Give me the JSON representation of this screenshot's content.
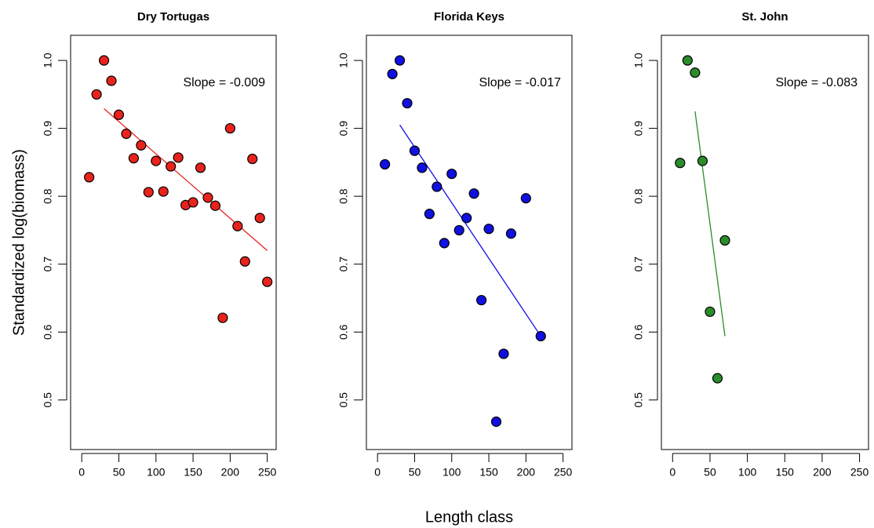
{
  "chart_data": [
    {
      "type": "scatter",
      "title": "Dry Tortugas",
      "ylabel": "Standardized log(biomass)",
      "x": [
        10,
        20,
        30,
        40,
        50,
        60,
        70,
        80,
        90,
        100,
        110,
        120,
        130,
        140,
        150,
        160,
        170,
        180,
        190,
        200,
        210,
        220,
        230,
        240,
        250
      ],
      "values": [
        0.828,
        0.95,
        1.0,
        0.97,
        0.92,
        0.892,
        0.856,
        0.875,
        0.806,
        0.852,
        0.807,
        0.844,
        0.857,
        0.787,
        0.791,
        0.842,
        0.798,
        0.786,
        0.621,
        0.9,
        0.756,
        0.704,
        0.855,
        0.768,
        0.674
      ],
      "color": "#e8231c",
      "fit": {
        "x": [
          30,
          250
        ],
        "y": [
          0.929,
          0.72
        ]
      },
      "annotation": "Slope = -0.009",
      "xlim": [
        -15,
        262
      ],
      "ylim": [
        0.427,
        1.037
      ],
      "xticks": [
        0,
        50,
        100,
        150,
        200,
        250
      ],
      "yticks": [
        0.5,
        0.6,
        0.7,
        0.8,
        0.9,
        {
          "value": 1,
          "label": "1.0"
        }
      ]
    },
    {
      "type": "scatter",
      "title": "Florida Keys",
      "xlabel": "Length class",
      "x": [
        10,
        20,
        30,
        40,
        50,
        60,
        70,
        80,
        90,
        100,
        110,
        120,
        130,
        140,
        150,
        160,
        170,
        180,
        200,
        220
      ],
      "values": [
        0.847,
        0.98,
        1.0,
        0.937,
        0.867,
        0.842,
        0.774,
        0.814,
        0.731,
        0.833,
        0.75,
        0.768,
        0.804,
        0.647,
        0.752,
        0.468,
        0.568,
        0.745,
        0.797,
        0.594
      ],
      "color": "#1010e0",
      "fit": {
        "x": [
          30,
          220
        ],
        "y": [
          0.905,
          0.594
        ]
      },
      "annotation": "Slope = -0.017",
      "xlim": [
        -15,
        262
      ],
      "ylim": [
        0.427,
        1.037
      ],
      "xticks": [
        0,
        50,
        100,
        150,
        200,
        250
      ],
      "yticks": [
        0.5,
        0.6,
        0.7,
        0.8,
        0.9,
        {
          "value": 1,
          "label": "1.0"
        }
      ]
    },
    {
      "type": "scatter",
      "title": "St. John",
      "x": [
        10,
        20,
        30,
        40,
        50,
        60,
        70
      ],
      "values": [
        0.849,
        1.0,
        0.982,
        0.852,
        0.63,
        0.532,
        0.735
      ],
      "color": "#2a8c2a",
      "fit": {
        "x": [
          30,
          70
        ],
        "y": [
          0.925,
          0.594
        ]
      },
      "annotation": "Slope = -0.083",
      "xlim": [
        -15,
        262
      ],
      "ylim": [
        0.427,
        1.037
      ],
      "xticks": [
        0,
        50,
        100,
        150,
        200,
        250
      ],
      "yticks": [
        0.5,
        0.6,
        0.7,
        0.8,
        0.9,
        {
          "value": 1,
          "label": "1.0"
        }
      ]
    }
  ]
}
